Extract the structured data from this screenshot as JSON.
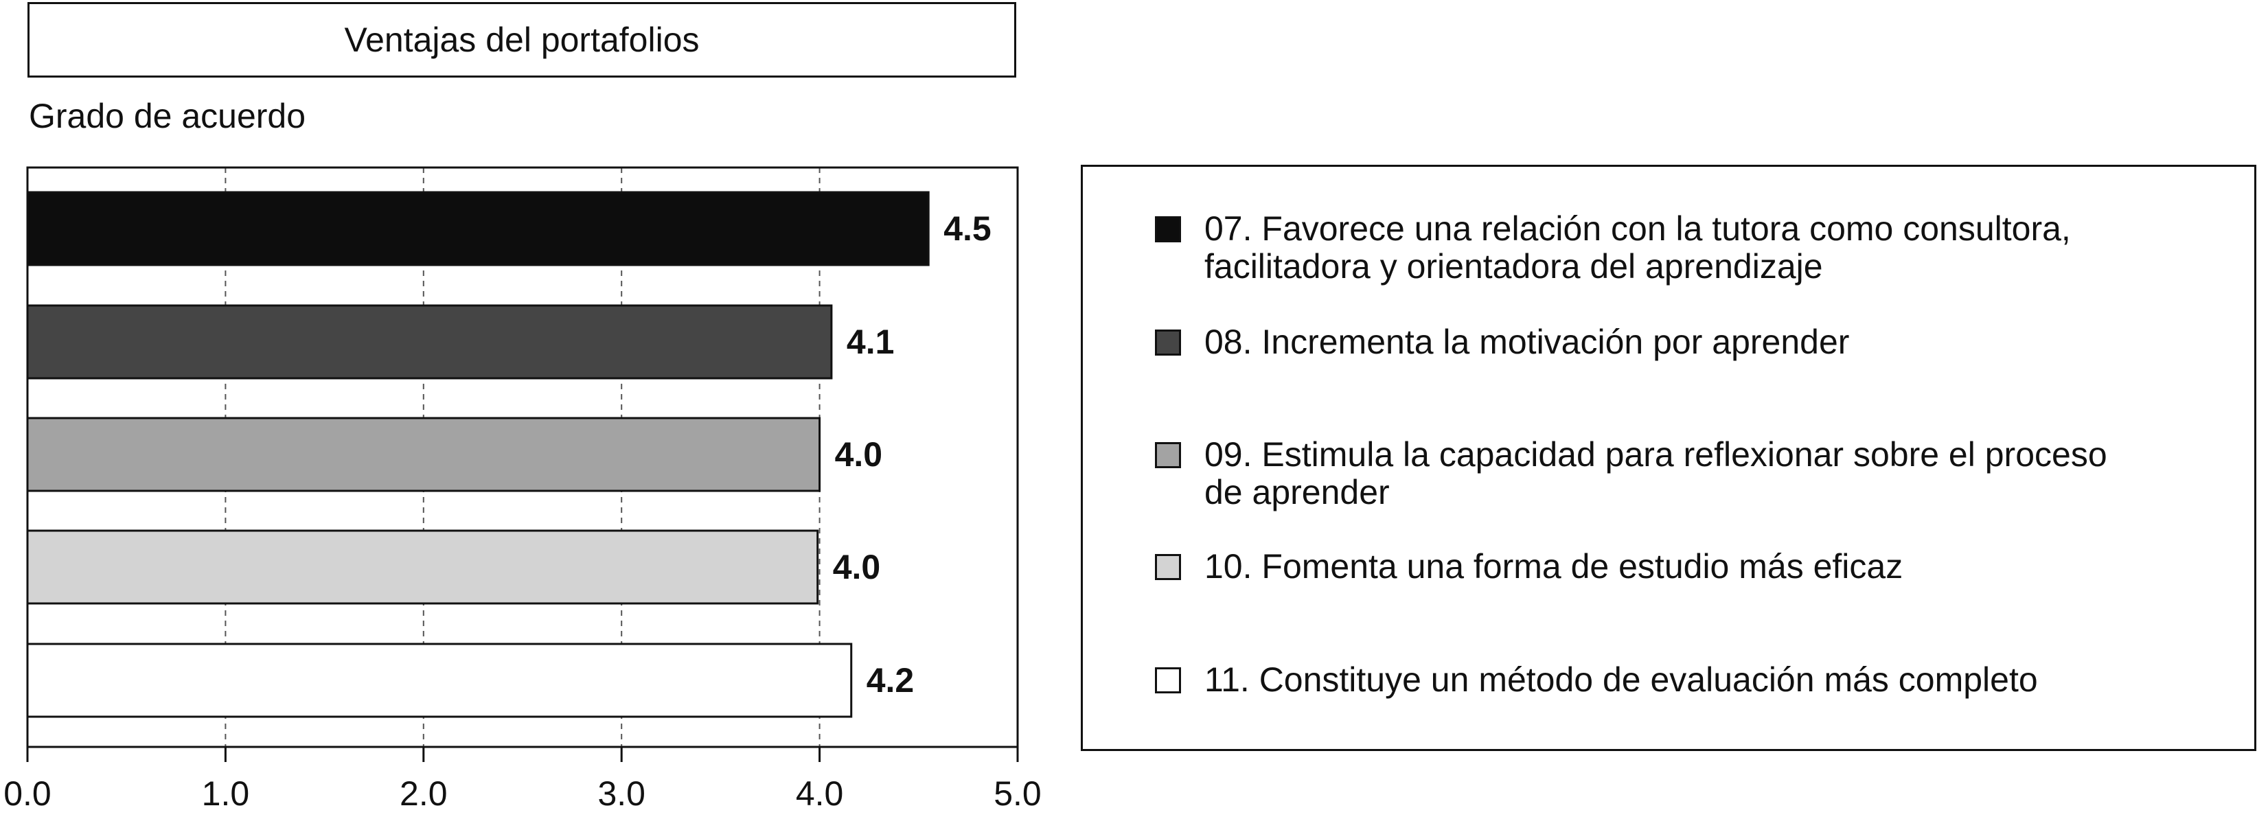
{
  "chart_data": {
    "type": "bar",
    "orientation": "horizontal",
    "title": "Ventajas del portafolios",
    "xlabel": "",
    "ylabel": "Grado de acuerdo",
    "xlim": [
      0,
      5
    ],
    "xticks": [
      "0.0",
      "1.0",
      "2.0",
      "3.0",
      "4.0",
      "5.0"
    ],
    "grid": "vertical dashed",
    "legend_position": "right",
    "categories": [
      "07. Favorece una relación con la tutora como consultora,\nfacilitadora y orientadora del aprendizaje",
      "08. Incrementa la motivación por aprender",
      "09. Estimula la capacidad para reflexionar sobre el proceso\nde aprender",
      "10. Fomenta una forma de estudio más eficaz",
      "11. Constituye un método de evaluación más completo"
    ],
    "values": [
      4.55,
      4.06,
      4.0,
      3.99,
      4.16
    ],
    "data_labels": [
      "4.5",
      "4.1",
      "4.0",
      "4.0",
      "4.2"
    ],
    "colors": [
      "#0d0d0d",
      "#454545",
      "#a3a3a3",
      "#d3d3d3",
      "#ffffff"
    ]
  }
}
